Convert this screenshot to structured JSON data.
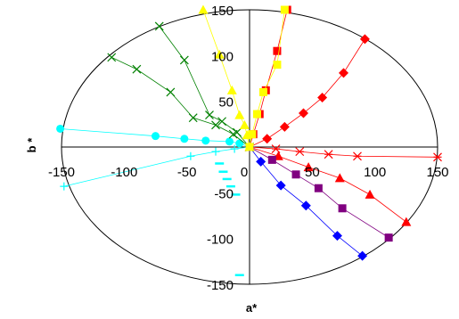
{
  "chart_data": {
    "type": "scatter",
    "title": "",
    "xlabel": "a*",
    "ylabel": "b *",
    "xlim": [
      -150,
      150
    ],
    "ylim": [
      -150,
      150
    ],
    "x_ticks": [
      -150,
      -100,
      -50,
      0,
      50,
      100,
      150
    ],
    "y_ticks": [
      150,
      100,
      50,
      0,
      -50,
      -100,
      -150
    ],
    "x_tick_labels": [
      "-150",
      "-100",
      "-50",
      "0",
      "50",
      "100",
      "150"
    ],
    "y_tick_labels": [
      "150",
      "100",
      "50",
      "0",
      "-50",
      "-100",
      "-150"
    ],
    "grid": false,
    "legend": "none",
    "boundary": "ellipse",
    "series": [
      {
        "color": "#FF0000",
        "marker": "square",
        "x": [
          0,
          3,
          8,
          13,
          22,
          30
        ],
        "y": [
          0,
          14,
          36,
          62,
          105,
          150
        ]
      },
      {
        "color": "#FF0000",
        "marker": "diamond",
        "x": [
          0,
          14,
          28,
          43,
          58,
          75,
          92
        ],
        "y": [
          0,
          9,
          22,
          37,
          54,
          81,
          118
        ]
      },
      {
        "color": "#FF0000",
        "marker": "asterisk",
        "x": [
          0,
          21,
          40,
          63,
          86,
          150
        ],
        "y": [
          0,
          -2,
          -5,
          -8,
          -10,
          -11
        ]
      },
      {
        "color": "#FF0000",
        "marker": "triangle",
        "x": [
          0,
          23,
          47,
          72,
          96,
          125
        ],
        "y": [
          0,
          -10,
          -22,
          -34,
          -52,
          -82
        ]
      },
      {
        "color": "#800080",
        "marker": "square",
        "x": [
          0,
          18,
          37,
          55,
          74,
          111
        ],
        "y": [
          0,
          -14,
          -30,
          -45,
          -67,
          -99
        ]
      },
      {
        "color": "#0000FF",
        "marker": "diamond",
        "x": [
          0,
          9,
          25,
          45,
          70,
          90
        ],
        "y": [
          0,
          -16,
          -42,
          -64,
          -97,
          -119
        ]
      },
      {
        "color": "#00FFFF",
        "marker": "dash",
        "x": [
          -8,
          -11,
          -15,
          -18,
          -21,
          -24
        ],
        "y": [
          -140,
          -52,
          -43,
          -35,
          -27,
          -18
        ]
      },
      {
        "color": "#00FFFF",
        "marker": "plus",
        "x": [
          0,
          -12,
          -27,
          -47,
          -148
        ],
        "y": [
          0,
          -2,
          -5,
          -10,
          -43
        ]
      },
      {
        "color": "#00FFFF",
        "marker": "circle",
        "x": [
          0,
          -8,
          -16,
          -35,
          -52,
          -75,
          -151
        ],
        "y": [
          0,
          4,
          6,
          7,
          9,
          12,
          20
        ]
      },
      {
        "color": "#008000",
        "marker": "x",
        "x": [
          0,
          -13,
          -27,
          -45,
          -63,
          -90,
          -110
        ],
        "y": [
          0,
          14,
          24,
          32,
          60,
          85,
          98
        ]
      },
      {
        "color": "#008000",
        "marker": "x",
        "x": [
          0,
          -10,
          -22,
          -32,
          -52,
          -72
        ],
        "y": [
          0,
          16,
          28,
          35,
          95,
          132
        ]
      },
      {
        "color": "#FFFF00",
        "marker": "triangle",
        "x": [
          0,
          -2,
          -4,
          -8,
          -14,
          -24,
          -37
        ],
        "y": [
          0,
          13,
          24,
          35,
          62,
          101,
          150
        ]
      },
      {
        "color": "#FFFF00",
        "marker": "square",
        "x": [
          0,
          2,
          6,
          11,
          22,
          28
        ],
        "y": [
          0,
          14,
          36,
          60,
          90,
          150
        ]
      }
    ]
  }
}
